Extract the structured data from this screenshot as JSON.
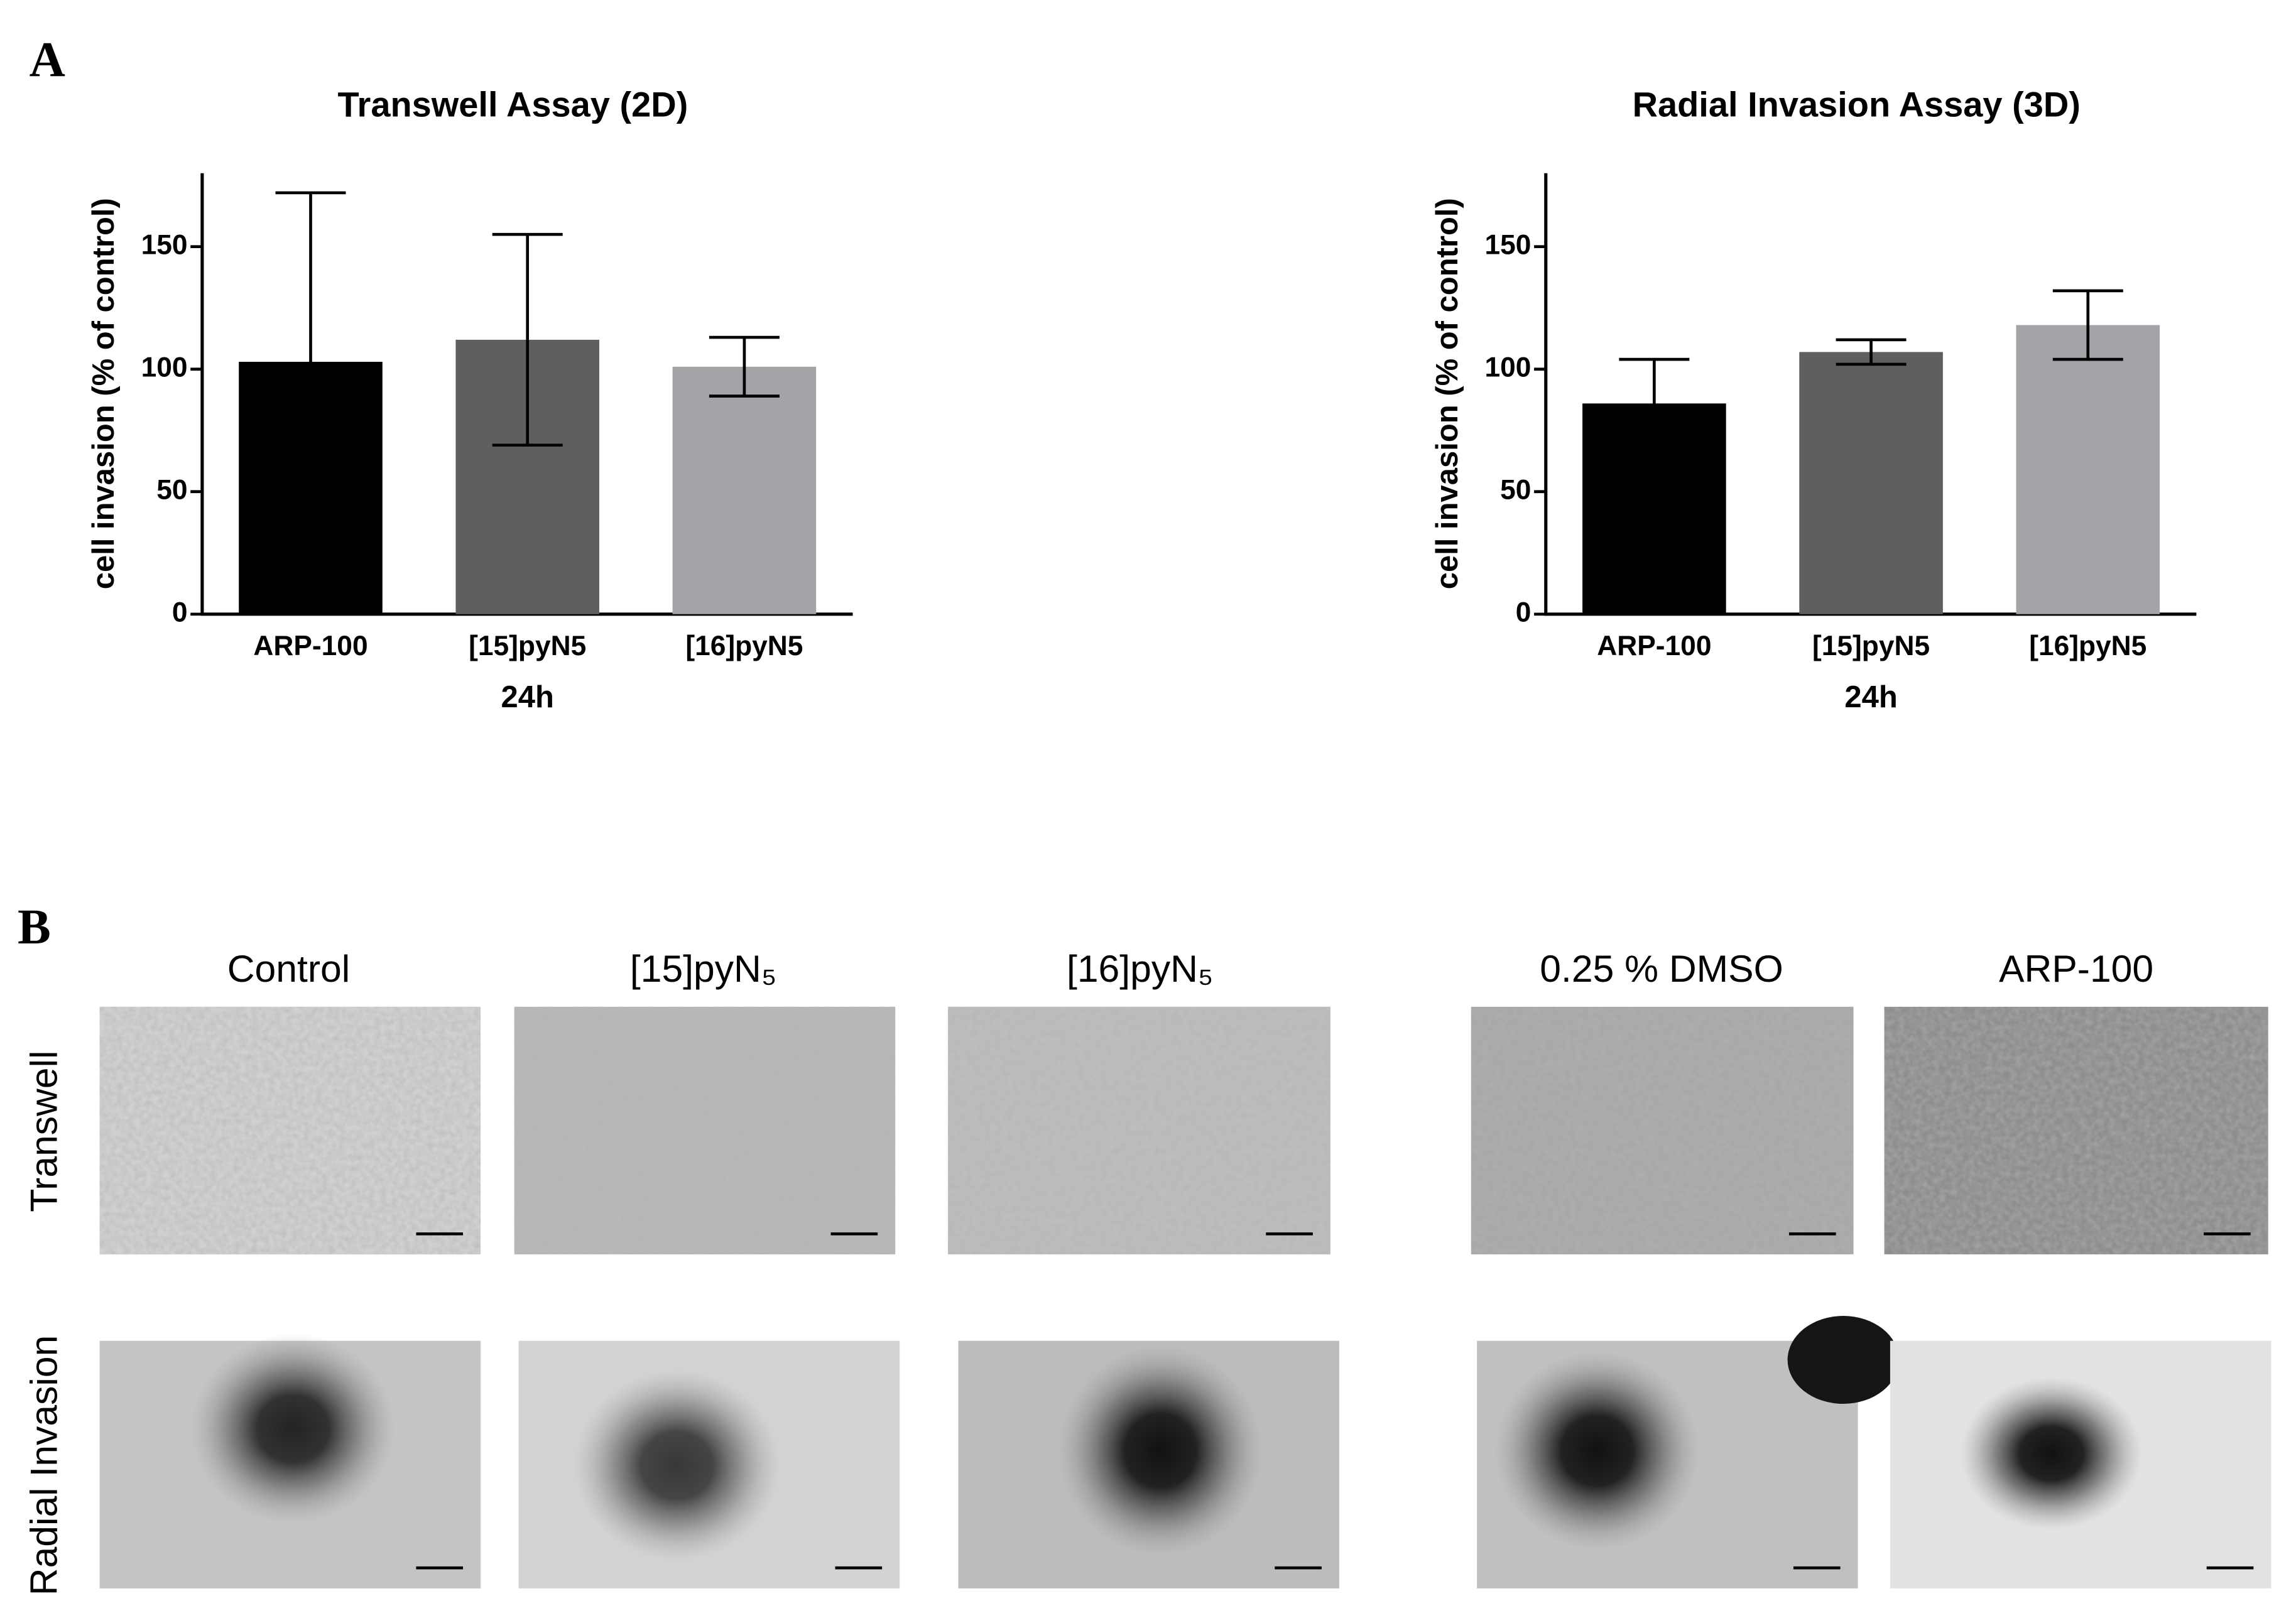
{
  "panel_a_label": "A",
  "chart_data": [
    {
      "type": "bar",
      "title": "Transwell  Assay  (2D)",
      "y_label": "cell invasion (% of control)",
      "x_label": "24h",
      "categories": [
        "ARP-100",
        "[15]pyN5",
        "[16]pyN5"
      ],
      "values": [
        103,
        112,
        101
      ],
      "errors": [
        69,
        43,
        12
      ],
      "colors": [
        "#000000",
        "#5f5f5f",
        "#a4a3a8"
      ],
      "ylim": [
        0,
        180
      ],
      "yticks": [
        0,
        50,
        100,
        150
      ]
    },
    {
      "type": "bar",
      "title": "Radial  Invasion Assay (3D)",
      "y_label": "cell invasion (% of control)",
      "x_label": "24h",
      "categories": [
        "ARP-100",
        "[15]pyN5",
        "[16]pyN5"
      ],
      "values": [
        86,
        107,
        118
      ],
      "errors": [
        18,
        5,
        14
      ],
      "colors": [
        "#000000",
        "#5f5f5f",
        "#a4a3a8"
      ],
      "ylim": [
        0,
        180
      ],
      "yticks": [
        0,
        50,
        100,
        150
      ]
    }
  ],
  "panel_b": {
    "label": "B",
    "columns": [
      "Control",
      "[15]pyN₅",
      "[16]pyN₅",
      "0.25 % DMSO",
      "ARP-100"
    ],
    "rows": [
      "Transwell",
      "Radial Invasion"
    ]
  }
}
